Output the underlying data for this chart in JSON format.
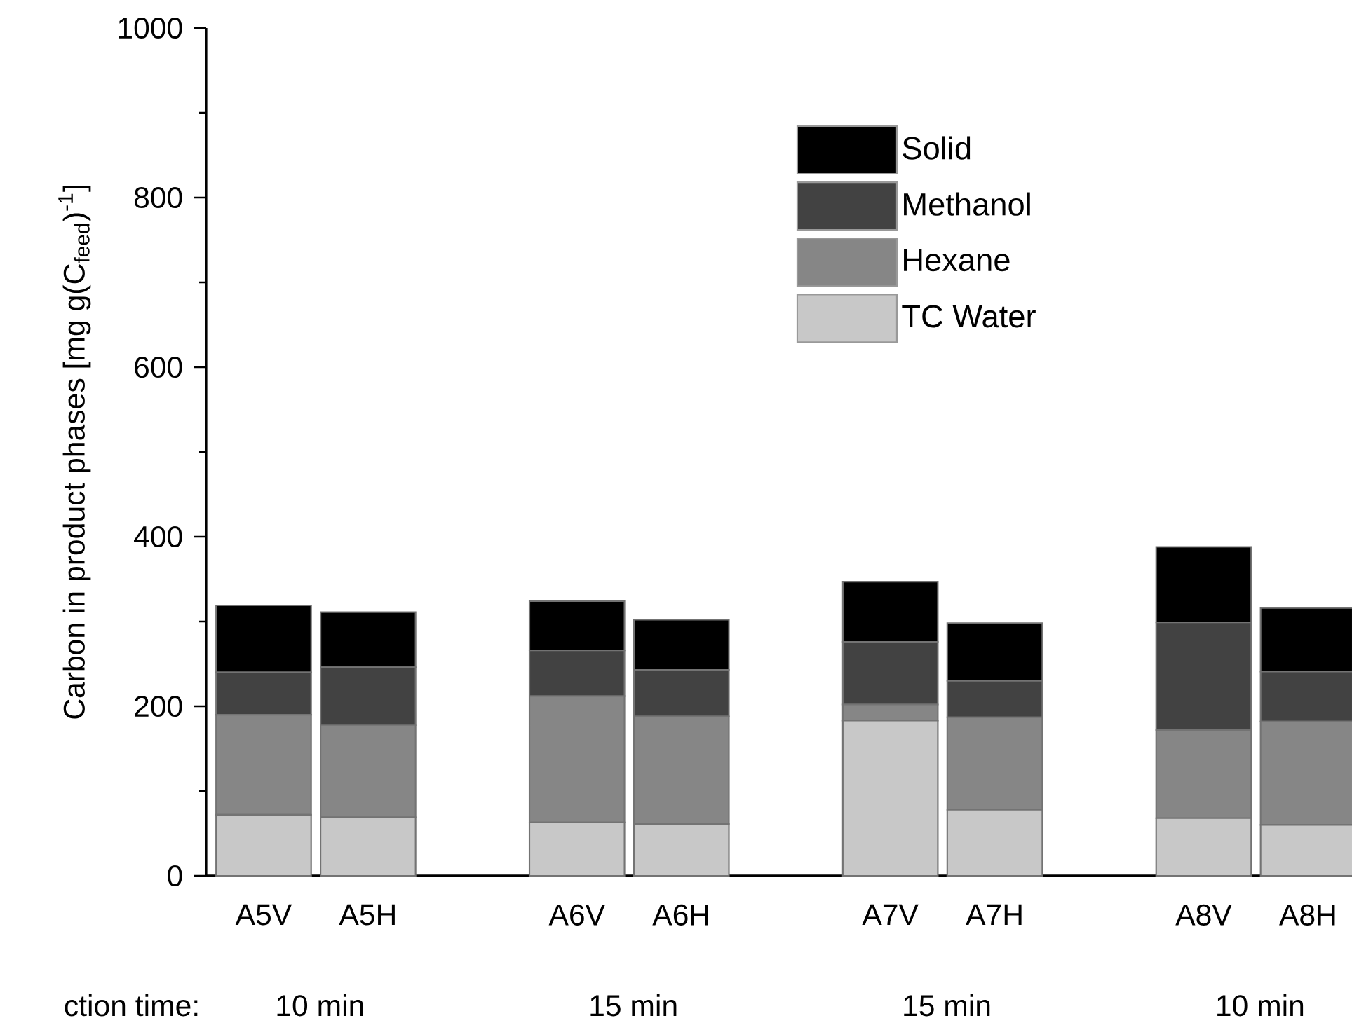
{
  "chart_data": {
    "type": "bar",
    "stacked": true,
    "ylabel": "Carbon in product phases [mg g(C$_{feed}$)$^{-1}$]",
    "categories": [
      "A5V",
      "A5H",
      null,
      "A6V",
      "A6H",
      null,
      "A7V",
      "A7H",
      null,
      "A8V",
      "A8H"
    ],
    "series": [
      {
        "name": "TC Water",
        "color": "#c8c8c8",
        "values": [
          72,
          69,
          null,
          63,
          61,
          null,
          183,
          78,
          null,
          68,
          60
        ]
      },
      {
        "name": "Hexane",
        "color": "#868686",
        "values": [
          118,
          109,
          null,
          149,
          127,
          null,
          19,
          109,
          null,
          104,
          122
        ]
      },
      {
        "name": "Methanol",
        "color": "#424242",
        "values": [
          50,
          68,
          null,
          54,
          55,
          null,
          74,
          43,
          null,
          127,
          59
        ]
      },
      {
        "name": "Solid",
        "color": "#000000",
        "values": [
          79,
          65,
          null,
          58,
          59,
          null,
          71,
          68,
          null,
          89,
          75
        ]
      }
    ],
    "ylim": [
      0,
      1000
    ],
    "yticks": [
      0,
      {
        "value": 100,
        "label": null
      },
      200,
      {
        "value": 300,
        "label": null
      },
      400,
      {
        "value": 500,
        "label": null
      },
      600,
      {
        "value": 700,
        "label": null
      },
      800,
      {
        "value": 900,
        "label": null
      },
      1000
    ],
    "legend": "top right",
    "annotations": [
      "ction time:",
      "10 min",
      "15 min",
      "15 min",
      "10 min"
    ]
  }
}
